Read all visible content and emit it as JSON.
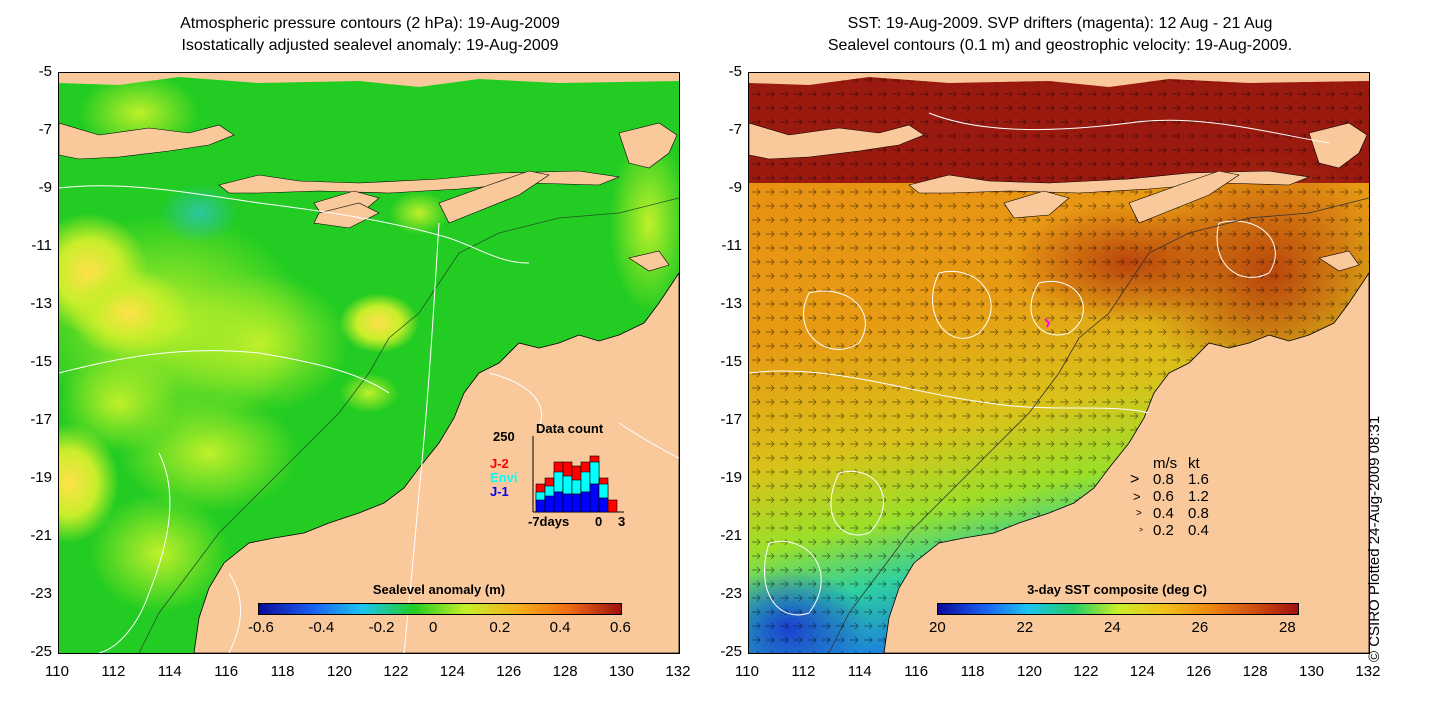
{
  "left_panel": {
    "title_line1": "Atmospheric pressure contours (2 hPa): 19-Aug-2009",
    "title_line2": "Isostatically adjusted sealevel anomaly: 19-Aug-2009",
    "colorbar_label": "Sealevel anomaly (m)",
    "colorbar_ticks": [
      "-0.6",
      "-0.4",
      "-0.2",
      "0",
      "0.2",
      "0.4",
      "0.6"
    ],
    "inset": {
      "title": "Data count",
      "ymax_label": "250",
      "legend": [
        {
          "label": "J-2",
          "color": "#ff0000"
        },
        {
          "label": "Envi",
          "color": "#00ffff"
        },
        {
          "label": "J-1",
          "color": "#0000ff"
        }
      ],
      "x_labels": [
        "-7days",
        "0",
        "3"
      ]
    }
  },
  "right_panel": {
    "title_line1": "SST: 19-Aug-2009. SVP drifters (magenta): 12 Aug - 21 Aug",
    "title_line2": "Sealevel contours (0.1 m) and geostrophic velocity: 19-Aug-2009.",
    "colorbar_label": "3-day SST composite (deg C)",
    "colorbar_ticks": [
      "20",
      "22",
      "24",
      "26",
      "28"
    ],
    "velocity_legend": {
      "header_ms": "m/s",
      "header_kt": "kt",
      "rows": [
        {
          "ms": "0.8",
          "kt": "1.6"
        },
        {
          "ms": "0.6",
          "kt": "1.2"
        },
        {
          "ms": "0.4",
          "kt": "0.8"
        },
        {
          "ms": "0.2",
          "kt": "0.4"
        }
      ]
    }
  },
  "axes": {
    "y_ticks": [
      "-5",
      "-7",
      "-9",
      "-11",
      "-13",
      "-15",
      "-17",
      "-19",
      "-21",
      "-23",
      "-25"
    ],
    "x_ticks": [
      "110",
      "112",
      "114",
      "116",
      "118",
      "120",
      "122",
      "124",
      "126",
      "128",
      "130",
      "132"
    ]
  },
  "credit": "© CSIRO Plotted 24-Aug-2009 08:31",
  "colors": {
    "land": "#f9c89b",
    "sla_green": "#22cc22",
    "sst_red": "#9b1a10",
    "sst_orange": "#e48a10"
  }
}
